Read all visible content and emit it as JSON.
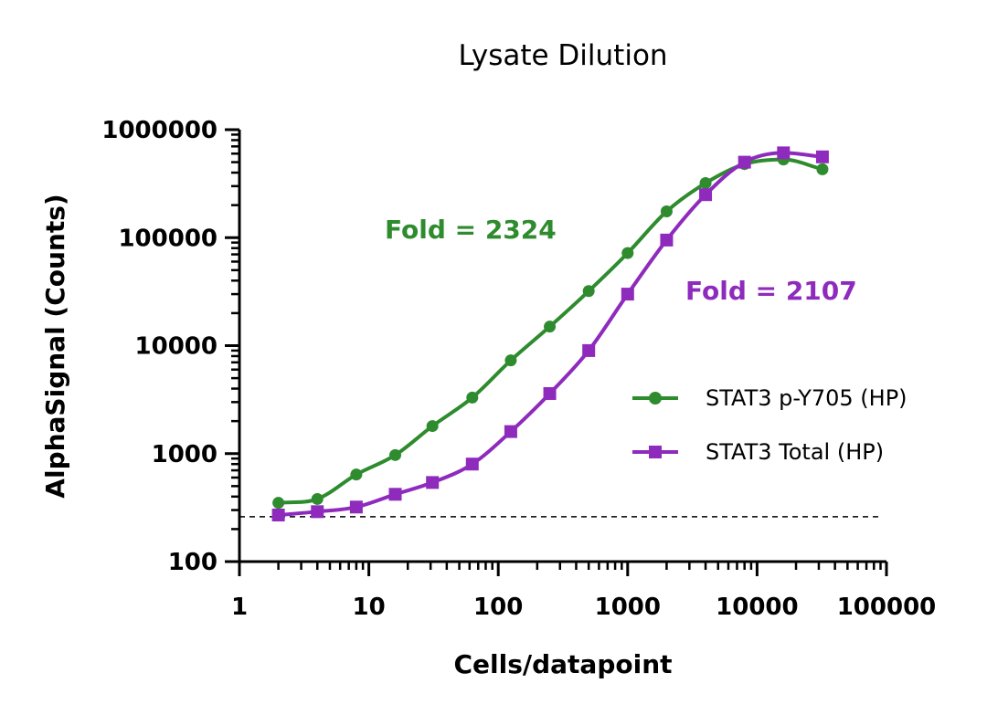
{
  "chart_data": {
    "type": "scatter",
    "title": "Lysate Dilution",
    "xlabel": "Cells/datapoint",
    "ylabel": "AlphaSignal (Counts)",
    "xscale": "log",
    "yscale": "log",
    "xlim": [
      1,
      100000
    ],
    "ylim": [
      100,
      1000000
    ],
    "x_ticks": [
      1,
      10,
      100,
      1000,
      10000,
      100000
    ],
    "x_tick_labels": [
      "1",
      "10",
      "100",
      "1000",
      "10000",
      "100000"
    ],
    "y_ticks": [
      100,
      1000,
      10000,
      100000,
      1000000
    ],
    "y_tick_labels": [
      "100",
      "1000",
      "10000",
      "100000",
      "1000000"
    ],
    "grid": false,
    "legend": "right",
    "series": [
      {
        "name": "STAT3 p-Y705 (HP)",
        "color": "#2e8b2e",
        "marker": "circle",
        "fit": "sigmoidal curve",
        "x": [
          2,
          4,
          8,
          16,
          31,
          63,
          125,
          250,
          500,
          1000,
          2000,
          4000,
          8000,
          16000,
          32000
        ],
        "y": [
          350,
          380,
          640,
          970,
          1800,
          3300,
          7300,
          15000,
          32000,
          72000,
          175000,
          320000,
          480000,
          530000,
          430000
        ]
      },
      {
        "name": "STAT3 Total (HP)",
        "color": "#8e2bbd",
        "marker": "square",
        "fit": "sigmoidal curve",
        "x": [
          2,
          4,
          8,
          16,
          31,
          63,
          125,
          250,
          500,
          1000,
          2000,
          4000,
          8000,
          16000,
          32000
        ],
        "y": [
          270,
          290,
          320,
          420,
          540,
          800,
          1600,
          3600,
          9000,
          30000,
          95000,
          250000,
          500000,
          610000,
          560000
        ]
      }
    ],
    "annotations": [
      {
        "text": "Fold = 2324",
        "color": "#2e8b2e"
      },
      {
        "text": "Fold = 2107",
        "color": "#8e2bbd"
      }
    ],
    "reference_line": {
      "y": 260,
      "style": "dashed"
    }
  }
}
